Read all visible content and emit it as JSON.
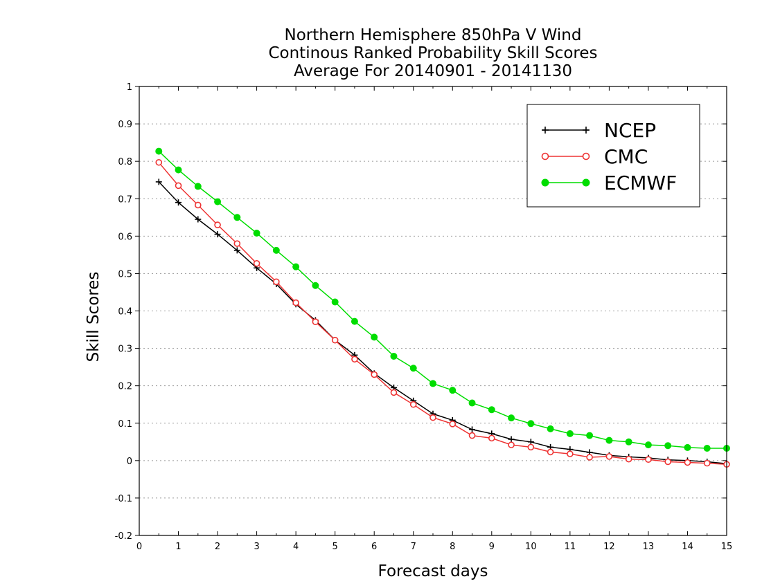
{
  "chart_data": {
    "type": "line",
    "title": [
      "Northern Hemisphere 850hPa V Wind",
      "Continous Ranked Probability Skill Scores",
      "Average For 20140901 - 20141130"
    ],
    "xlabel": "Forecast days",
    "ylabel": "Skill Scores",
    "xlim": [
      0,
      15
    ],
    "ylim": [
      -0.2,
      1
    ],
    "xticks": [
      0,
      1,
      2,
      3,
      4,
      5,
      6,
      7,
      8,
      9,
      10,
      11,
      12,
      13,
      14,
      15
    ],
    "yticks": [
      -0.2,
      -0.1,
      0,
      0.1,
      0.2,
      0.3,
      0.4,
      0.5,
      0.6,
      0.7,
      0.8,
      0.9,
      1
    ],
    "ytick_labels": [
      "-0.2",
      "-0.1",
      "0",
      "0.1",
      "0.2",
      "0.3",
      "0.4",
      "0.5",
      "0.6",
      "0.7",
      "0.8",
      "0.9",
      "1"
    ],
    "grid": "horizontal dotted",
    "legend_position": "top-right",
    "x": [
      0.5,
      1,
      1.5,
      2,
      2.5,
      3,
      3.5,
      4,
      4.5,
      5,
      5.5,
      6,
      6.5,
      7,
      7.5,
      8,
      8.5,
      9,
      9.5,
      10,
      10.5,
      11,
      11.5,
      12,
      12.5,
      13,
      13.5,
      14,
      14.5,
      15
    ],
    "series": [
      {
        "name": "NCEP",
        "color": "#000000",
        "marker": "plus",
        "values": [
          0.745,
          0.69,
          0.645,
          0.605,
          0.562,
          0.515,
          0.472,
          0.418,
          0.375,
          0.322,
          0.282,
          0.233,
          0.195,
          0.16,
          0.125,
          0.108,
          0.083,
          0.072,
          0.057,
          0.05,
          0.036,
          0.03,
          0.022,
          0.014,
          0.01,
          0.007,
          0.002,
          0.0,
          -0.003,
          -0.008
        ]
      },
      {
        "name": "CMC",
        "color": "#ee3333",
        "marker": "open-circle",
        "values": [
          0.797,
          0.735,
          0.683,
          0.63,
          0.58,
          0.527,
          0.478,
          0.422,
          0.371,
          0.322,
          0.271,
          0.23,
          0.182,
          0.15,
          0.115,
          0.098,
          0.067,
          0.06,
          0.042,
          0.036,
          0.023,
          0.018,
          0.009,
          0.011,
          0.004,
          0.003,
          -0.003,
          -0.005,
          -0.007,
          -0.01
        ]
      },
      {
        "name": "ECMWF",
        "color": "#00dd00",
        "marker": "filled-circle",
        "values": [
          0.827,
          0.777,
          0.733,
          0.692,
          0.65,
          0.608,
          0.562,
          0.518,
          0.468,
          0.424,
          0.372,
          0.33,
          0.279,
          0.247,
          0.206,
          0.188,
          0.154,
          0.136,
          0.114,
          0.099,
          0.085,
          0.072,
          0.067,
          0.054,
          0.05,
          0.042,
          0.04,
          0.035,
          0.033,
          0.033
        ]
      }
    ]
  }
}
